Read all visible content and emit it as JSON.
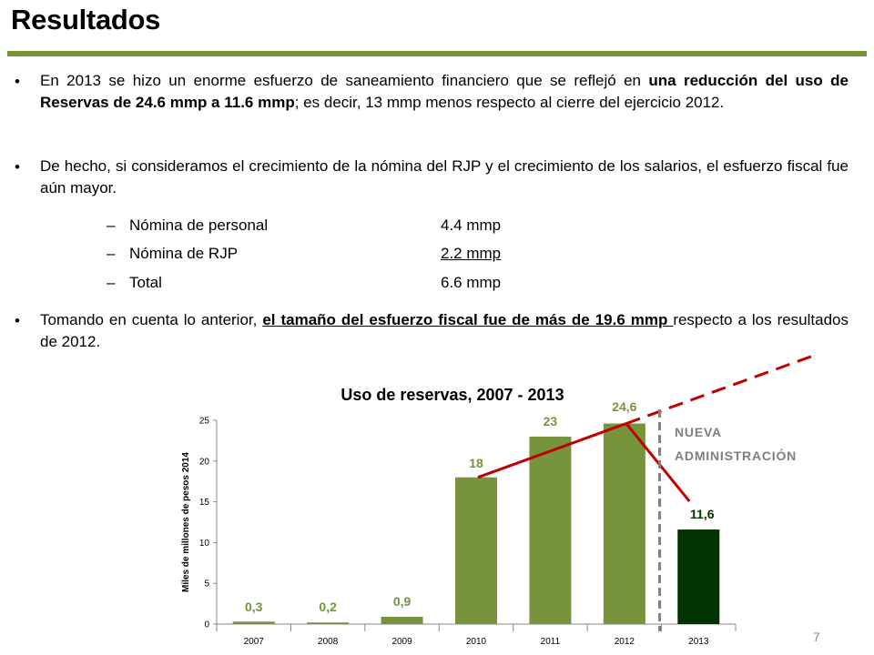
{
  "slide": {
    "title": "Resultados",
    "page_number": "7"
  },
  "bullets": [
    {
      "pre": "En 2013 se hizo un enorme esfuerzo de saneamiento financiero que se reflejó en ",
      "bold": "una reducción del uso de Reservas de 24.6 mmp a 11.6 mmp",
      "post": "; es decir,  13 mmp menos respecto al cierre del ejercicio 2012."
    },
    {
      "text": "De hecho, si consideramos el crecimiento de la nómina del RJP y el crecimiento de los salarios, el esfuerzo fiscal fue aún mayor."
    },
    {
      "pre": "Tomando en cuenta lo anterior, ",
      "bold_underline": "el tamaño del esfuerzo fiscal fue de más de 19.6 mmp ",
      "post": "respecto a los resultados de 2012."
    }
  ],
  "breakdown": [
    {
      "label": "Nómina de personal",
      "value": "4.4 mmp",
      "underline": false
    },
    {
      "label": "Nómina de RJP",
      "value": "2.2 mmp",
      "underline": true
    },
    {
      "label": "Total",
      "value": "6.6 mmp",
      "underline": false
    }
  ],
  "breakdown_dash": "‒",
  "chart_data": {
    "type": "bar",
    "title": "Uso de reservas, 2007 - 2013",
    "xlabel": "",
    "ylabel": "Miles de millones de pesos 2014",
    "categories": [
      "2007",
      "2008",
      "2009",
      "2010",
      "2011",
      "2012",
      "2013"
    ],
    "values": [
      0.3,
      0.2,
      0.9,
      18,
      23,
      24.6,
      11.6
    ],
    "data_labels": [
      "0,3",
      "0,2",
      "0,9",
      "18",
      "23",
      "24,6",
      "11,6"
    ],
    "ylim": [
      0,
      25
    ],
    "yticks": [
      0,
      5,
      10,
      15,
      20,
      25
    ],
    "grid": false,
    "legend": "none",
    "annotation": "NUEVA ADMINISTRACIÓN",
    "colors": {
      "bar": "#77933c",
      "bar_highlight": "#003300",
      "trend_line": "#c00000",
      "label": "#77933c",
      "label_highlight": "#003300",
      "annotation": "#808080",
      "divider": "#808080"
    }
  }
}
